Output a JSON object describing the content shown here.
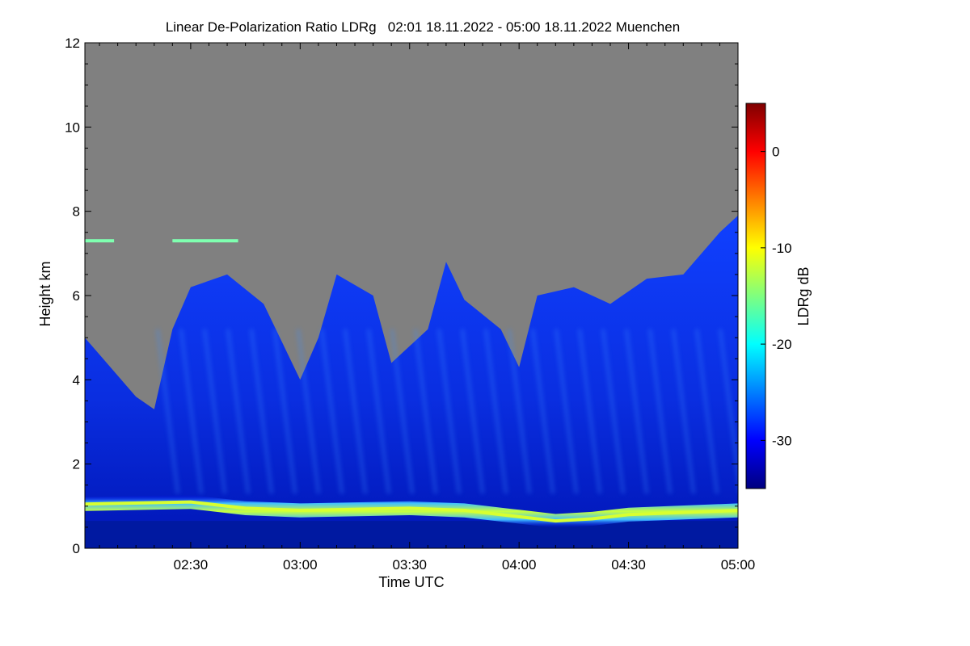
{
  "chart_data": {
    "type": "heatmap",
    "title": "Linear De-Polarization Ratio LDRg   02:01 18.11.2022 - 05:00 18.11.2022 Muenchen",
    "xlabel": "Time UTC",
    "ylabel": "Height km",
    "x_range": [
      "02:01",
      "05:00"
    ],
    "x_ticks": [
      "02:30",
      "03:00",
      "03:30",
      "04:00",
      "04:30",
      "05:00"
    ],
    "y_range": [
      0,
      12
    ],
    "y_ticks": [
      0,
      2,
      4,
      6,
      8,
      10,
      12
    ],
    "no_data_color": "#808080",
    "colorbar": {
      "label": "LDRg dB",
      "range": [
        -35,
        5
      ],
      "ticks": [
        -30,
        -20,
        -10,
        0
      ],
      "colormap": [
        "#00007f",
        "#0000ff",
        "#007fff",
        "#00ffff",
        "#7fff7f",
        "#ffff00",
        "#ff7f00",
        "#ff0000",
        "#7f0000"
      ]
    },
    "features": {
      "boundary_layer_top_km": [
        {
          "time": "02:01",
          "height": 1.05
        },
        {
          "time": "02:30",
          "height": 1.1
        },
        {
          "time": "02:45",
          "height": 0.95
        },
        {
          "time": "03:00",
          "height": 0.9
        },
        {
          "time": "03:30",
          "height": 0.95
        },
        {
          "time": "03:45",
          "height": 0.9
        },
        {
          "time": "04:00",
          "height": 0.75
        },
        {
          "time": "04:10",
          "height": 0.65
        },
        {
          "time": "04:20",
          "height": 0.7
        },
        {
          "time": "04:30",
          "height": 0.8
        },
        {
          "time": "05:00",
          "height": 0.9
        }
      ],
      "signal_top_km": [
        {
          "time": "02:01",
          "height": 5.0
        },
        {
          "time": "02:15",
          "height": 3.6
        },
        {
          "time": "02:20",
          "height": 3.3
        },
        {
          "time": "02:25",
          "height": 5.2
        },
        {
          "time": "02:30",
          "height": 6.2
        },
        {
          "time": "02:40",
          "height": 6.5
        },
        {
          "time": "02:50",
          "height": 5.8
        },
        {
          "time": "03:00",
          "height": 4.0
        },
        {
          "time": "03:05",
          "height": 5.0
        },
        {
          "time": "03:10",
          "height": 6.5
        },
        {
          "time": "03:20",
          "height": 6.0
        },
        {
          "time": "03:25",
          "height": 4.4
        },
        {
          "time": "03:35",
          "height": 5.2
        },
        {
          "time": "03:40",
          "height": 6.8
        },
        {
          "time": "03:45",
          "height": 5.9
        },
        {
          "time": "03:55",
          "height": 5.2
        },
        {
          "time": "04:00",
          "height": 4.3
        },
        {
          "time": "04:05",
          "height": 6.0
        },
        {
          "time": "04:15",
          "height": 6.2
        },
        {
          "time": "04:25",
          "height": 5.8
        },
        {
          "time": "04:35",
          "height": 6.4
        },
        {
          "time": "04:45",
          "height": 6.5
        },
        {
          "time": "04:55",
          "height": 7.5
        },
        {
          "time": "05:00",
          "height": 7.9
        }
      ],
      "elevated_layer": {
        "height": 7.3,
        "time_segments": [
          [
            "02:01",
            "02:09"
          ],
          [
            "02:25",
            "02:43"
          ]
        ],
        "ldr": -15
      }
    }
  }
}
